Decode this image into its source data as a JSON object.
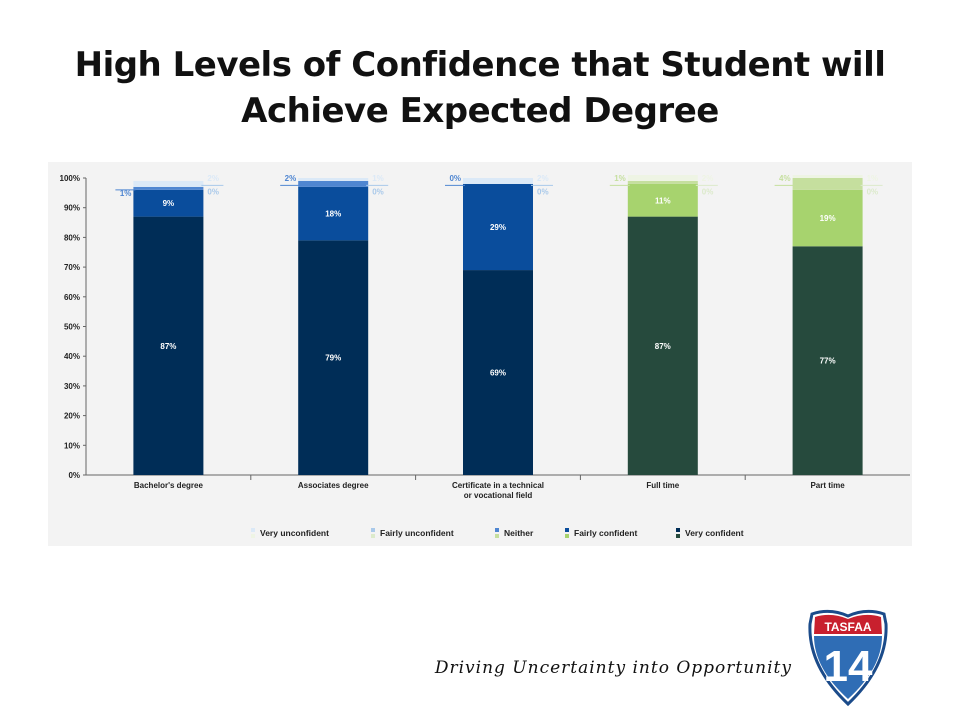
{
  "slide": {
    "title": "High Levels of Confidence that Student will Achieve Expected Degree",
    "tagline": "Driving Uncertainty into Opportunity",
    "logo": {
      "top_text": "TASFAA",
      "number": "14"
    }
  },
  "colors": {
    "very_confident_blue": "#002d57",
    "fairly_confident_blue": "#0a4d9c",
    "neither_blue": "#4f86d1",
    "fairly_unconfident_blue": "#a9c9ea",
    "very_unconfident_blue": "#dbe9f7",
    "very_confident_green": "#264a3d",
    "fairly_confident_green": "#a7d36e",
    "neither_green": "#c5df9e",
    "fairly_unconfident_green": "#dceacb",
    "very_unconfident_green": "#eef4e4"
  },
  "chart_data": {
    "type": "bar",
    "stacked": true,
    "title": "",
    "xlabel": "",
    "ylabel": "",
    "ylim": [
      0,
      100
    ],
    "yticks": [
      "0%",
      "10%",
      "20%",
      "30%",
      "40%",
      "50%",
      "60%",
      "70%",
      "80%",
      "90%",
      "100%"
    ],
    "categories": [
      "Bachelor's degree",
      "Associates degree",
      "Certificate in a technical or vocational field",
      "Full time",
      "Part time"
    ],
    "category_lines": [
      [
        "Bachelor's degree"
      ],
      [
        "Associates degree"
      ],
      [
        "Certificate in a technical",
        "or vocational field"
      ],
      [
        "Full time"
      ],
      [
        "Part time"
      ]
    ],
    "palette_by_category": [
      "blue",
      "blue",
      "blue",
      "green",
      "green"
    ],
    "series": [
      {
        "name": "Very confident",
        "key": "very_confident",
        "values": [
          87,
          79,
          69,
          87,
          77
        ],
        "labels": [
          "87%",
          "79%",
          "69%",
          "87%",
          "77%"
        ]
      },
      {
        "name": "Fairly confident",
        "key": "fairly_confident",
        "values": [
          9,
          18,
          29,
          11,
          19
        ],
        "labels": [
          "9%",
          "18%",
          "29%",
          "11%",
          "19%"
        ]
      },
      {
        "name": "Neither",
        "key": "neither",
        "values": [
          1,
          2,
          0,
          1,
          4
        ],
        "labels": [
          "1%",
          "2%",
          "0%",
          "1%",
          "4%"
        ]
      },
      {
        "name": "Fairly unconfident",
        "key": "fairly_unconfident",
        "values": [
          0,
          0,
          0,
          0,
          0
        ],
        "labels": [
          "0%",
          "0%",
          "0%",
          "0%",
          "0%"
        ]
      },
      {
        "name": "Very unconfident",
        "key": "very_unconfident",
        "values": [
          2,
          1,
          2,
          2,
          1
        ],
        "labels": [
          "2%",
          "1%",
          "2%",
          "2%",
          "1%"
        ]
      }
    ],
    "legend": {
      "placement": "bottom",
      "order": [
        "very_unconfident",
        "fairly_unconfident",
        "neither",
        "fairly_confident",
        "very_confident"
      ]
    }
  }
}
